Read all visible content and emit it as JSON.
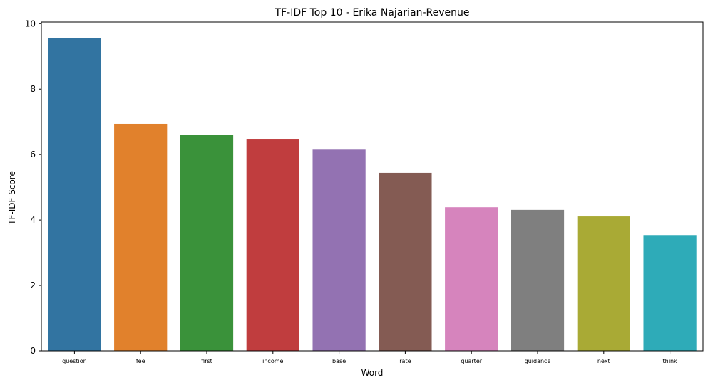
{
  "chart_data": {
    "type": "bar",
    "title": "TF-IDF Top 10 - Erika Najarian-Revenue",
    "xlabel": "Word",
    "ylabel": "TF-IDF Score",
    "categories": [
      "question",
      "fee",
      "first",
      "income",
      "base",
      "rate",
      "quarter",
      "guidance",
      "next",
      "think"
    ],
    "values": [
      9.57,
      6.94,
      6.61,
      6.46,
      6.15,
      5.44,
      4.39,
      4.31,
      4.11,
      3.54
    ],
    "colors": [
      "#3274a1",
      "#e1812c",
      "#3a923a",
      "#c03d3e",
      "#9372b2",
      "#845b53",
      "#d684bd",
      "#7f7f7f",
      "#a9aa35",
      "#2eabb8"
    ],
    "ylim": [
      0,
      10.05
    ],
    "yticks": [
      0,
      2,
      4,
      6,
      8,
      10
    ],
    "grid": false,
    "legend": "none"
  }
}
